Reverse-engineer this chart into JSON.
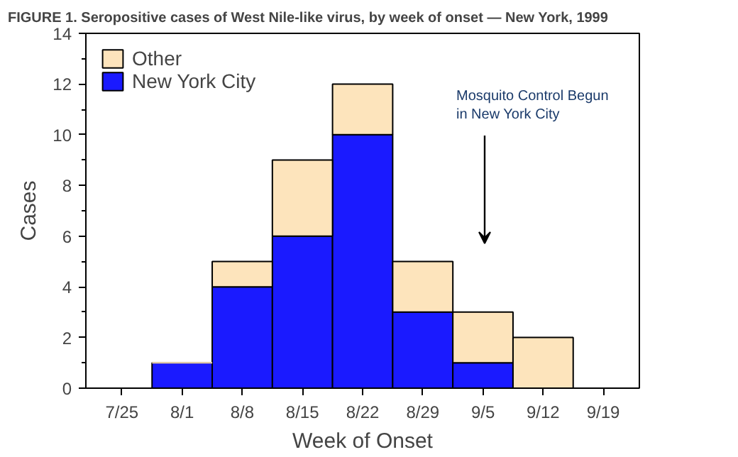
{
  "chart_data": {
    "type": "bar",
    "stacked": true,
    "title": "FIGURE 1. Seropositive cases of West Nile-like virus, by week of onset — New York, 1999",
    "xlabel": "Week of Onset",
    "ylabel": "Cases",
    "categories": [
      "7/25",
      "8/1",
      "8/8",
      "8/15",
      "8/22",
      "8/29",
      "9/5",
      "9/12",
      "9/19"
    ],
    "series": [
      {
        "name": "New York City",
        "color": "#1a1aff",
        "values": [
          0,
          1,
          4,
          6,
          10,
          3,
          1,
          0,
          0
        ]
      },
      {
        "name": "Other",
        "color": "#fde4bc",
        "values": [
          0,
          0,
          1,
          3,
          2,
          2,
          2,
          2,
          0
        ]
      }
    ],
    "ylim": [
      0,
      14
    ],
    "yticks": [
      0,
      2,
      4,
      6,
      8,
      10,
      12,
      14
    ],
    "annotations": [
      "Mosquito Control Begun\nin New York City"
    ],
    "legend": "top left",
    "grid": false
  }
}
